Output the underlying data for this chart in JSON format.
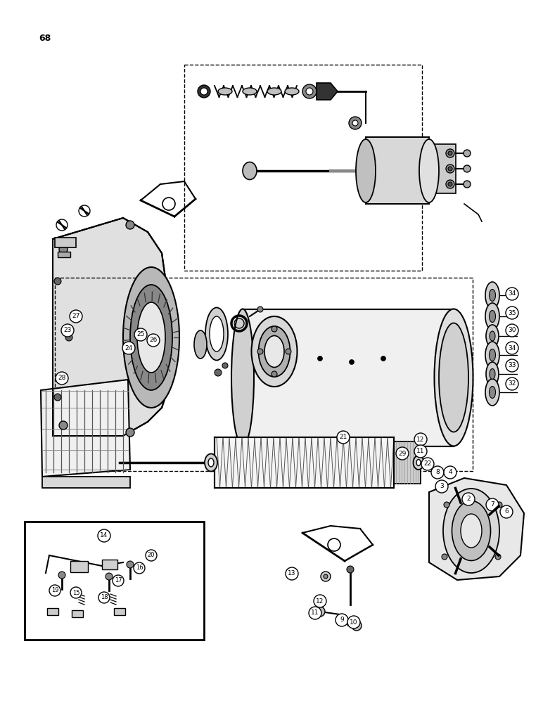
{
  "page_num": "68",
  "bg_color": "#ffffff",
  "ink_color": "#000000",
  "fig_width": 7.72,
  "fig_height": 10.0,
  "dpi": 100
}
